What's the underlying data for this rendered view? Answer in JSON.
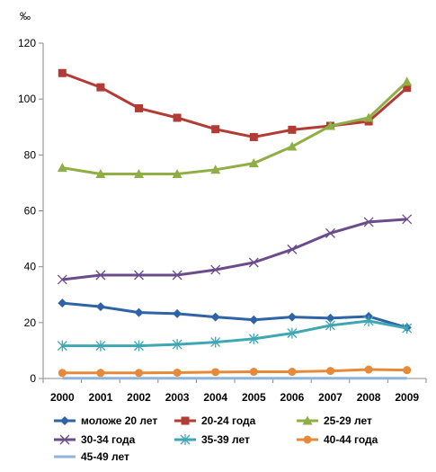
{
  "chart_data": {
    "type": "line",
    "title": "",
    "xlabel": "",
    "ylabel": "‰",
    "ylim": [
      0,
      120
    ],
    "yticks": [
      0,
      20,
      40,
      60,
      80,
      100,
      120
    ],
    "grid": false,
    "legend_position": "bottom",
    "x": [
      "2000",
      "2001",
      "2002",
      "2003",
      "2004",
      "2005",
      "2006",
      "2007",
      "2008",
      "2009"
    ],
    "series": [
      {
        "name": "моложе 20 лет",
        "color": "#2e63a6",
        "marker": "diamond",
        "values": [
          27,
          25.7,
          23.6,
          23.2,
          22,
          21,
          22,
          21.6,
          22.2,
          18.2
        ]
      },
      {
        "name": "20-24 года",
        "color": "#b23b36",
        "marker": "square",
        "values": [
          109.3,
          104.2,
          96.7,
          93.3,
          89.2,
          86.4,
          89,
          90.4,
          92,
          104
        ]
      },
      {
        "name": "25-29 лет",
        "color": "#8faf46",
        "marker": "triangle",
        "values": [
          75.4,
          73.2,
          73.2,
          73.2,
          74.7,
          77,
          83,
          90.4,
          93.3,
          106.2
        ]
      },
      {
        "name": "30-34 года",
        "color": "#6b4c8b",
        "marker": "x",
        "values": [
          35.4,
          37,
          37,
          37,
          38.9,
          41.5,
          46.2,
          52,
          56,
          57
        ]
      },
      {
        "name": "35-39 лет",
        "color": "#3fa7b4",
        "marker": "star",
        "values": [
          11.7,
          11.7,
          11.7,
          12.2,
          13,
          14.2,
          16.2,
          19,
          20.6,
          18
        ]
      },
      {
        "name": "40-44 года",
        "color": "#e68a3a",
        "marker": "circle",
        "values": [
          2,
          2,
          2,
          2.1,
          2.3,
          2.4,
          2.4,
          2.7,
          3.2,
          3
        ]
      },
      {
        "name": "45-49 лет",
        "color": "#8fb3d9",
        "marker": "none",
        "values": [
          0.1,
          0.1,
          0.1,
          0.1,
          0.1,
          0.1,
          0.1,
          0.1,
          0.1,
          0.1
        ]
      }
    ]
  }
}
